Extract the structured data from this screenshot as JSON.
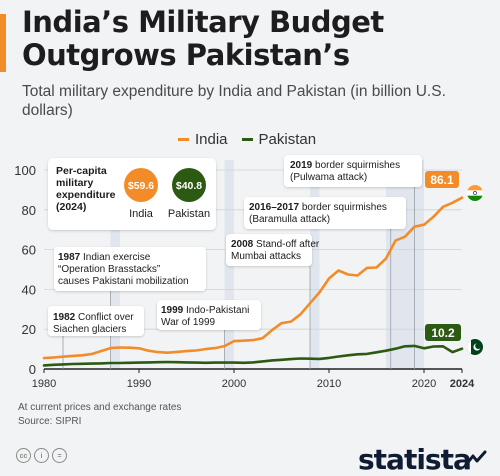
{
  "header": {
    "title_line1": "India’s Military Budget",
    "title_line2": "Outgrows Pakistan’s",
    "subtitle": "Total military expenditure by India and Pakistan (in billion U.S. dollars)"
  },
  "colors": {
    "india": "#f28c28",
    "pakistan": "#2c5a12",
    "band": "#e1e6ee",
    "background": "#f1f3f4"
  },
  "percapita": {
    "title": "Per-capita military expenditure (2024)",
    "india_value": "$59.6",
    "india_label": "India",
    "pakistan_value": "$40.8",
    "pakistan_label": "Pakistan"
  },
  "chart_data": {
    "type": "line",
    "xlabel": "",
    "ylabel": "",
    "x_ticks": [
      "1980",
      "1990",
      "2000",
      "2010",
      "2020",
      "2024"
    ],
    "y_ticks": [
      "0",
      "20",
      "40",
      "60",
      "80",
      "100"
    ],
    "xlim": [
      1980,
      2024
    ],
    "ylim": [
      0,
      100
    ],
    "grid": true,
    "legend_position": "top",
    "years": [
      1980,
      1981,
      1982,
      1983,
      1984,
      1985,
      1986,
      1987,
      1988,
      1989,
      1990,
      1991,
      1992,
      1993,
      1994,
      1995,
      1996,
      1997,
      1998,
      1999,
      2000,
      2001,
      2002,
      2003,
      2004,
      2005,
      2006,
      2007,
      2008,
      2009,
      2010,
      2011,
      2012,
      2013,
      2014,
      2015,
      2016,
      2017,
      2018,
      2019,
      2020,
      2021,
      2022,
      2023,
      2024
    ],
    "series": [
      {
        "name": "India",
        "color": "#f28c28",
        "values": [
          5.5,
          5.8,
          6.2,
          6.6,
          6.9,
          7.5,
          9.0,
          10.5,
          10.8,
          10.7,
          10.4,
          9.2,
          8.5,
          8.2,
          8.6,
          9.0,
          9.3,
          10.0,
          10.5,
          11.5,
          14.0,
          14.2,
          14.5,
          15.5,
          19.5,
          23.0,
          23.8,
          27.5,
          33.0,
          38.5,
          45.5,
          49.5,
          47.5,
          47.0,
          50.8,
          51.0,
          55.5,
          64.5,
          66.5,
          71.5,
          72.5,
          76.5,
          81.5,
          83.5,
          86.1
        ]
      },
      {
        "name": "Pakistan",
        "color": "#2c5a12",
        "values": [
          1.8,
          2.1,
          2.3,
          2.5,
          2.6,
          2.7,
          2.8,
          3.0,
          3.0,
          3.1,
          3.2,
          3.3,
          3.4,
          3.5,
          3.4,
          3.3,
          3.2,
          3.1,
          3.2,
          3.2,
          3.2,
          3.1,
          3.3,
          3.8,
          4.3,
          4.6,
          5.0,
          5.3,
          5.2,
          5.1,
          5.6,
          6.3,
          6.9,
          7.4,
          7.6,
          8.4,
          9.2,
          10.2,
          11.4,
          11.6,
          10.4,
          11.3,
          11.4,
          8.5,
          10.2
        ]
      }
    ],
    "end_labels": {
      "india": "86.1",
      "pakistan": "10.2"
    },
    "shaded_periods": [
      [
        1987,
        1988
      ],
      [
        1999,
        2000
      ],
      [
        2008,
        2009
      ],
      [
        2016,
        2020
      ]
    ],
    "annotations": [
      {
        "year": "1982",
        "text": "Conflict over Siachen glaciers"
      },
      {
        "year": "1987",
        "text": "Indian exercise “Operation Brasstacks” causes Pakistani mobilization"
      },
      {
        "year": "1999",
        "text": "Indo-Pakistani War of 1999"
      },
      {
        "year": "2008",
        "text": "Stand-off after Mumbai attacks"
      },
      {
        "year": "2016–2017",
        "text": "border squirmishes (Baramulla attack)"
      },
      {
        "year": "2019",
        "text": "border squirmishes (Pulwama attack)"
      }
    ]
  },
  "footnote": {
    "line1": "At current prices and exchange rates",
    "line2": "Source: SIPRI"
  },
  "brand": "statista"
}
